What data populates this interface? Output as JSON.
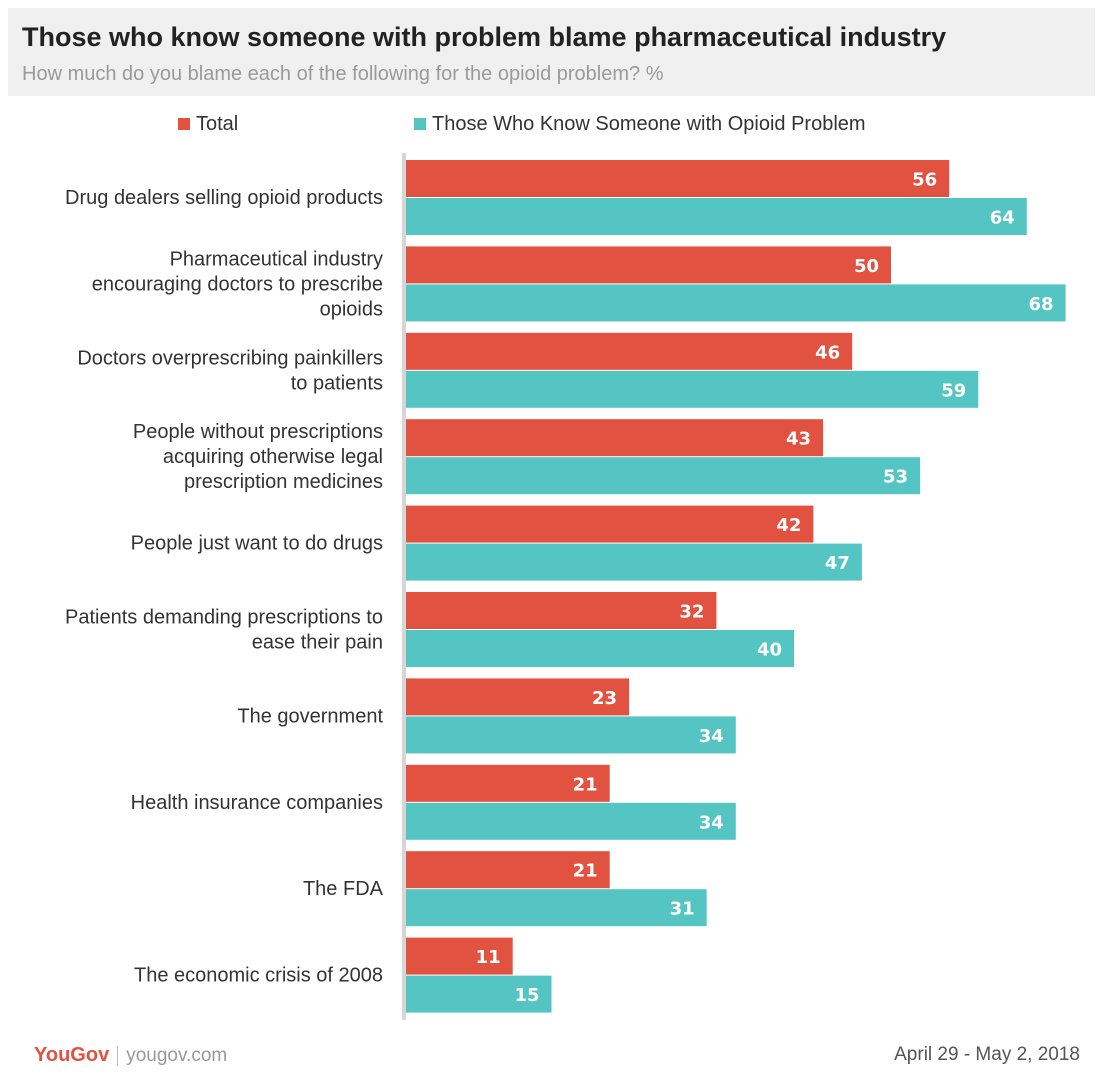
{
  "header": {
    "title": "Those who know someone with problem blame pharmaceutical industry",
    "subtitle": "How much do you blame each of the following for the opioid problem? %"
  },
  "colors": {
    "total": "#e15241",
    "know": "#55c5c3",
    "axis": "#d6d6d6"
  },
  "chart_data": {
    "type": "bar",
    "orientation": "horizontal",
    "xlim": [
      0,
      70
    ],
    "grid": false,
    "legend_position": "top",
    "categories": [
      [
        "Drug dealers selling opioid products"
      ],
      [
        "Pharmaceutical industry",
        "encouraging doctors to prescribe",
        "opioids"
      ],
      [
        "Doctors overprescribing painkillers",
        "to patients"
      ],
      [
        "People without prescriptions",
        "acquiring otherwise legal",
        "prescription medicines"
      ],
      [
        "People just want to do drugs"
      ],
      [
        "Patients demanding prescriptions to",
        "ease their pain"
      ],
      [
        "The government"
      ],
      [
        "Health insurance companies"
      ],
      [
        "The FDA"
      ],
      [
        "The economic crisis of 2008"
      ]
    ],
    "series": [
      {
        "name": "Total",
        "values": [
          56,
          50,
          46,
          43,
          42,
          32,
          23,
          21,
          21,
          11
        ]
      },
      {
        "name": "Those Who Know Someone with Opioid Problem",
        "values": [
          64,
          68,
          59,
          53,
          47,
          40,
          34,
          34,
          31,
          15
        ]
      }
    ]
  },
  "footer": {
    "brand": "YouGov",
    "url": "yougov.com",
    "date": "April 29 - May 2, 2018"
  }
}
